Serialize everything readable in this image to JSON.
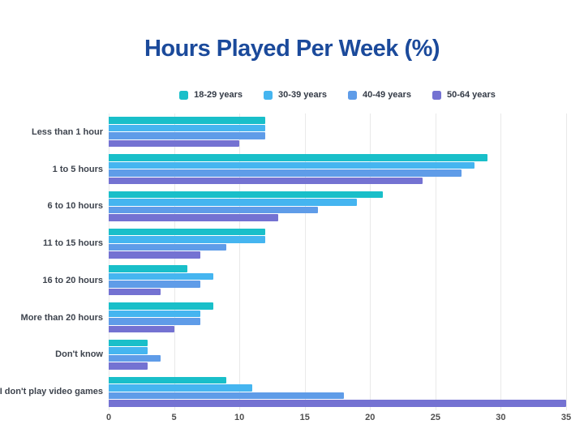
{
  "title": "Hours Played Per Week (%)",
  "chart_data": {
    "type": "bar",
    "orientation": "horizontal",
    "title": "Hours Played Per Week (%)",
    "xlabel": "",
    "ylabel": "",
    "xlim": [
      0,
      35
    ],
    "x_ticks": [
      0,
      5,
      10,
      15,
      20,
      25,
      30,
      35
    ],
    "grid": true,
    "legend_position": "top",
    "categories": [
      "Less than 1 hour",
      "1 to 5 hours",
      "6 to 10 hours",
      "11 to 15 hours",
      "16 to 20 hours",
      "More than 20 hours",
      "Don't know",
      "I don't play video games"
    ],
    "series": [
      {
        "name": "18-29 years",
        "color": "#19bfc9",
        "values": [
          12,
          29,
          21,
          12,
          6,
          8,
          3,
          9
        ]
      },
      {
        "name": "30-39 years",
        "color": "#45b5f0",
        "values": [
          12,
          28,
          19,
          12,
          8,
          7,
          3,
          11
        ]
      },
      {
        "name": "40-49 years",
        "color": "#5f9ce8",
        "values": [
          12,
          27,
          16,
          9,
          7,
          7,
          4,
          18
        ]
      },
      {
        "name": "50-64 years",
        "color": "#7472d2",
        "values": [
          10,
          24,
          13,
          7,
          4,
          5,
          3,
          35
        ]
      }
    ]
  },
  "colors": {
    "title_text": "#1b4a9b",
    "category_label_text": "#3d434d",
    "tick_label_text": "#4f4f4f",
    "gridline": "#e9e9e9",
    "background": "#ffffff"
  }
}
